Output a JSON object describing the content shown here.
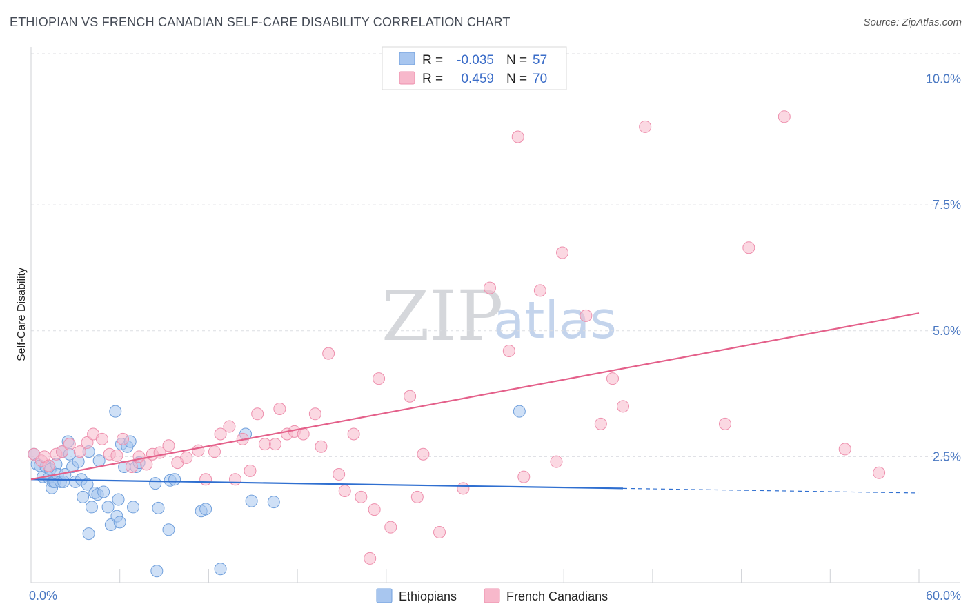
{
  "chart_data": {
    "type": "scatter",
    "title": "ETHIOPIAN VS FRENCH CANADIAN SELF-CARE DISABILITY CORRELATION CHART",
    "source": "Source: ZipAtlas.com",
    "xlabel": "",
    "ylabel": "Self-Care Disability",
    "xlim": [
      0,
      60
    ],
    "ylim": [
      0,
      10.5
    ],
    "x_tick_labels": [
      "0.0%",
      "60.0%"
    ],
    "y_ticks": [
      {
        "value": 2.5,
        "label": "2.5%"
      },
      {
        "value": 5.0,
        "label": "5.0%"
      },
      {
        "value": 7.5,
        "label": "7.5%"
      },
      {
        "value": 10.0,
        "label": "10.0%"
      }
    ],
    "watermark": {
      "zip": "ZIP",
      "atlas": "atlas"
    },
    "legend": [
      {
        "r_label": "R =",
        "r_value": "-0.035",
        "n_label": "N =",
        "n_value": "57"
      },
      {
        "r_label": "R =",
        "r_value": "0.459",
        "n_label": "N =",
        "n_value": "70"
      }
    ],
    "series": [
      {
        "name": "Ethiopians",
        "color": "#a8c6ef",
        "stroke": "#6f9fdc",
        "trend_color": "#2f6fd0",
        "trend": {
          "x0": 0,
          "y0": 2.05,
          "x1": 40,
          "y1": 1.87,
          "x_dash_end": 60,
          "y_dash_end": 1.78
        },
        "points": [
          [
            0.2,
            2.55
          ],
          [
            0.4,
            2.35
          ],
          [
            0.6,
            2.32
          ],
          [
            0.8,
            2.1
          ],
          [
            1.0,
            2.3
          ],
          [
            1.2,
            2.08
          ],
          [
            1.3,
            2.25
          ],
          [
            1.4,
            1.88
          ],
          [
            1.5,
            2.0
          ],
          [
            1.6,
            2.0
          ],
          [
            1.7,
            2.35
          ],
          [
            1.8,
            2.15
          ],
          [
            2.0,
            2.0
          ],
          [
            2.1,
            2.6
          ],
          [
            2.2,
            2.0
          ],
          [
            2.3,
            2.15
          ],
          [
            2.5,
            2.8
          ],
          [
            2.6,
            2.55
          ],
          [
            2.8,
            2.3
          ],
          [
            3.0,
            2.0
          ],
          [
            3.2,
            2.4
          ],
          [
            3.4,
            2.05
          ],
          [
            3.5,
            1.7
          ],
          [
            3.8,
            1.95
          ],
          [
            3.9,
            2.6
          ],
          [
            4.1,
            1.5
          ],
          [
            4.3,
            1.78
          ],
          [
            4.5,
            1.75
          ],
          [
            4.6,
            2.42
          ],
          [
            4.9,
            1.8
          ],
          [
            5.2,
            1.5
          ],
          [
            5.4,
            1.15
          ],
          [
            5.8,
            1.32
          ],
          [
            5.9,
            1.65
          ],
          [
            6.1,
            2.75
          ],
          [
            6.3,
            2.3
          ],
          [
            6.5,
            2.7
          ],
          [
            6.7,
            2.8
          ],
          [
            6.9,
            1.5
          ],
          [
            7.1,
            2.3
          ],
          [
            7.3,
            2.38
          ],
          [
            5.7,
            3.4
          ],
          [
            3.9,
            0.97
          ],
          [
            8.4,
            1.97
          ],
          [
            8.6,
            1.48
          ],
          [
            9.3,
            1.05
          ],
          [
            9.4,
            2.03
          ],
          [
            9.7,
            2.05
          ],
          [
            11.5,
            1.42
          ],
          [
            11.8,
            1.46
          ],
          [
            14.5,
            2.95
          ],
          [
            14.9,
            1.62
          ],
          [
            16.4,
            1.6
          ],
          [
            33.0,
            3.4
          ],
          [
            8.5,
            0.23
          ],
          [
            12.8,
            0.27
          ],
          [
            6.0,
            1.2
          ]
        ]
      },
      {
        "name": "French Canadians",
        "color": "#f7b8cb",
        "stroke": "#ee8fad",
        "trend_color": "#e4608a",
        "trend": {
          "x0": 0,
          "y0": 2.05,
          "x1": 60,
          "y1": 5.35
        },
        "points": [
          [
            0.2,
            2.55
          ],
          [
            0.7,
            2.42
          ],
          [
            0.9,
            2.5
          ],
          [
            1.2,
            2.32
          ],
          [
            1.7,
            2.55
          ],
          [
            2.1,
            2.6
          ],
          [
            2.6,
            2.75
          ],
          [
            3.3,
            2.6
          ],
          [
            3.8,
            2.78
          ],
          [
            4.2,
            2.95
          ],
          [
            4.8,
            2.85
          ],
          [
            5.3,
            2.55
          ],
          [
            5.8,
            2.52
          ],
          [
            6.2,
            2.85
          ],
          [
            6.8,
            2.3
          ],
          [
            7.3,
            2.5
          ],
          [
            7.8,
            2.35
          ],
          [
            8.2,
            2.55
          ],
          [
            8.7,
            2.58
          ],
          [
            9.3,
            2.72
          ],
          [
            9.9,
            2.38
          ],
          [
            10.5,
            2.48
          ],
          [
            11.3,
            2.62
          ],
          [
            11.8,
            2.05
          ],
          [
            12.4,
            2.6
          ],
          [
            12.8,
            2.95
          ],
          [
            13.4,
            3.1
          ],
          [
            13.8,
            2.05
          ],
          [
            14.3,
            2.85
          ],
          [
            14.8,
            2.22
          ],
          [
            15.3,
            3.35
          ],
          [
            15.8,
            2.75
          ],
          [
            16.5,
            2.75
          ],
          [
            16.8,
            3.45
          ],
          [
            17.3,
            2.95
          ],
          [
            17.8,
            3.0
          ],
          [
            18.4,
            2.95
          ],
          [
            19.2,
            3.35
          ],
          [
            19.6,
            2.7
          ],
          [
            20.1,
            4.55
          ],
          [
            20.8,
            2.15
          ],
          [
            21.2,
            1.82
          ],
          [
            21.8,
            2.95
          ],
          [
            22.3,
            1.7
          ],
          [
            22.9,
            0.48
          ],
          [
            23.2,
            1.45
          ],
          [
            23.5,
            4.05
          ],
          [
            24.3,
            1.1
          ],
          [
            25.6,
            3.7
          ],
          [
            26.1,
            1.7
          ],
          [
            26.5,
            2.55
          ],
          [
            27.6,
            1.0
          ],
          [
            29.2,
            1.87
          ],
          [
            31.0,
            5.85
          ],
          [
            32.3,
            4.6
          ],
          [
            32.9,
            8.85
          ],
          [
            33.3,
            2.1
          ],
          [
            34.4,
            5.8
          ],
          [
            35.5,
            2.4
          ],
          [
            35.9,
            6.55
          ],
          [
            37.5,
            5.3
          ],
          [
            38.5,
            3.15
          ],
          [
            39.3,
            4.05
          ],
          [
            40.0,
            3.5
          ],
          [
            41.5,
            9.05
          ],
          [
            46.9,
            3.15
          ],
          [
            48.5,
            6.65
          ],
          [
            50.9,
            9.25
          ],
          [
            55.0,
            2.65
          ],
          [
            57.3,
            2.18
          ]
        ]
      }
    ]
  }
}
